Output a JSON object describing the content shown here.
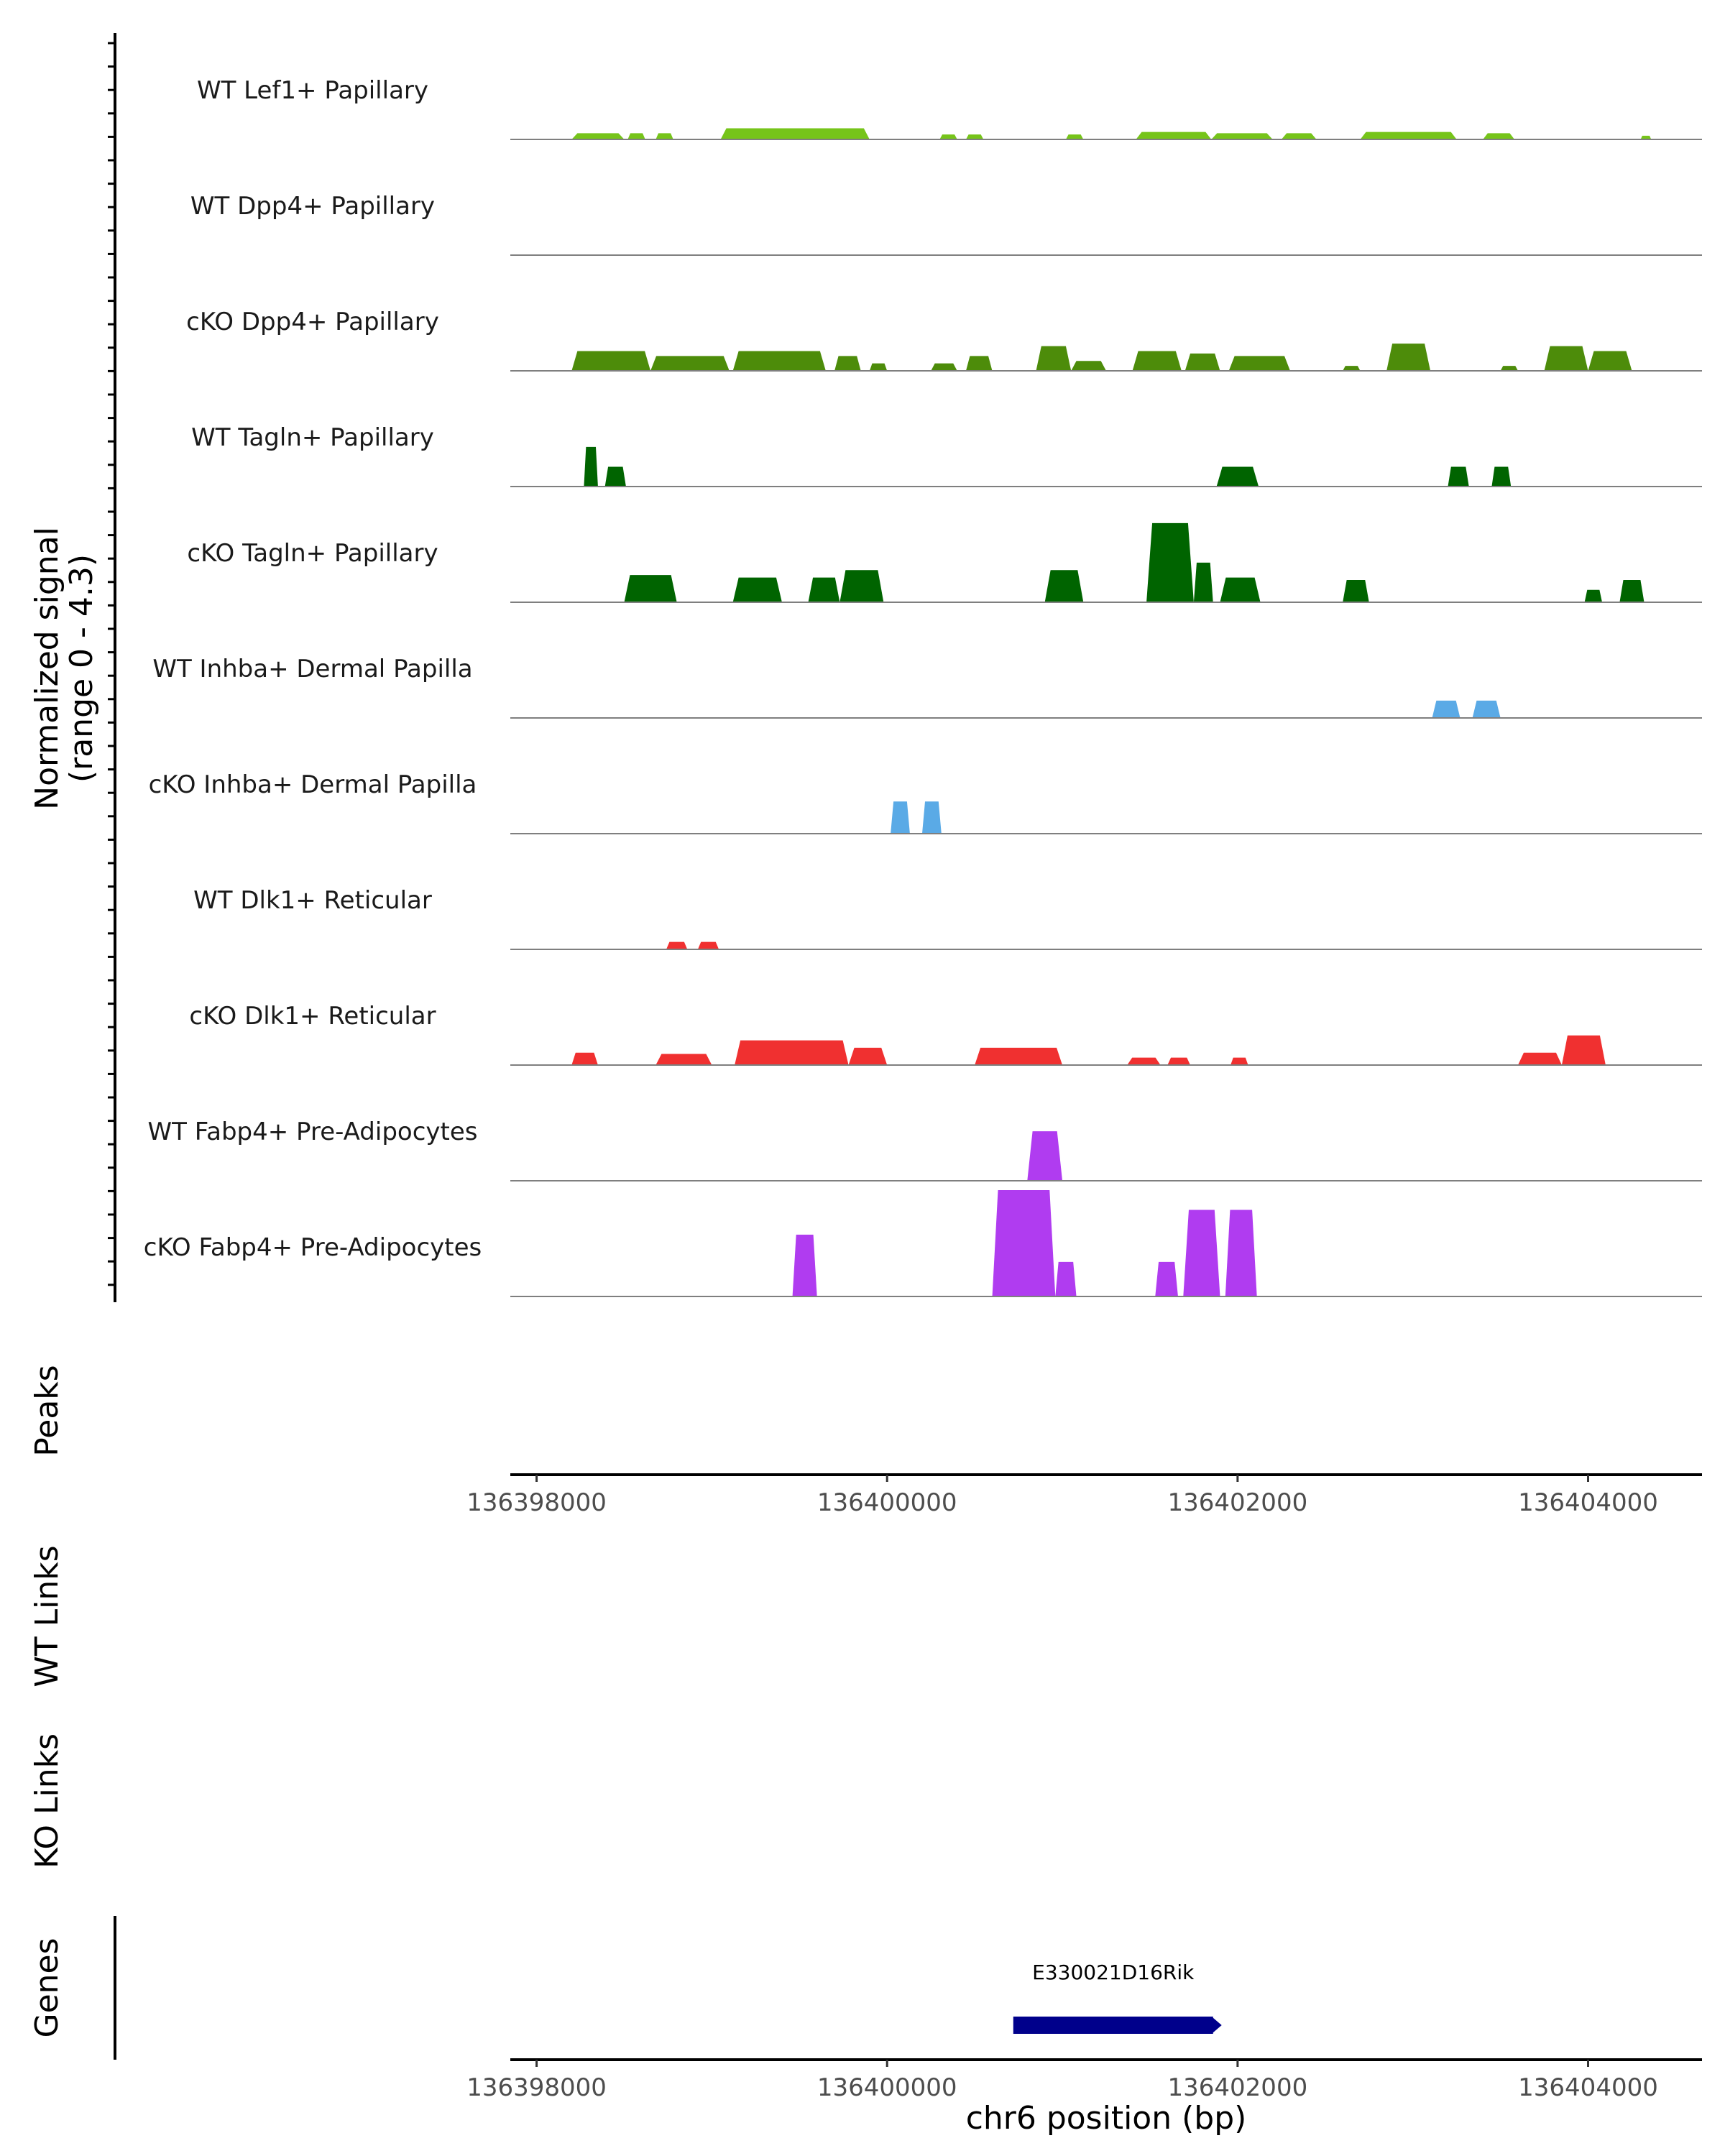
{
  "chart_data": {
    "type": "area",
    "title": "",
    "y_axis_label": {
      "line1": "Normalized signal",
      "line2": "(range 0 - 4.3)"
    },
    "ylim": [
      0,
      4.3
    ],
    "xlim": [
      136397850,
      136404650
    ],
    "x_ticks": [
      136398000,
      136400000,
      136402000,
      136404000
    ],
    "x_tick_labels": [
      "136398000",
      "136400000",
      "136402000",
      "136404000"
    ],
    "xlabel": "chr6 position (bp)",
    "panel_labels": {
      "peaks": "Peaks",
      "wt_links": "WT Links",
      "ko_links": "KO Links",
      "genes": "Genes"
    },
    "tracks": [
      {
        "name": "WT Lef1+ Papillary",
        "color": "#76c41a",
        "segments": [
          {
            "start": 136398200,
            "end": 136398500,
            "peak": 0.25
          },
          {
            "start": 136398520,
            "end": 136398620,
            "peak": 0.25
          },
          {
            "start": 136398680,
            "end": 136398780,
            "peak": 0.25
          },
          {
            "start": 136399050,
            "end": 136399900,
            "peak": 0.45
          },
          {
            "start": 136400300,
            "end": 136400400,
            "peak": 0.2
          },
          {
            "start": 136400450,
            "end": 136400550,
            "peak": 0.2
          },
          {
            "start": 136401020,
            "end": 136401120,
            "peak": 0.2
          },
          {
            "start": 136401420,
            "end": 136401850,
            "peak": 0.3
          },
          {
            "start": 136401850,
            "end": 136402200,
            "peak": 0.25
          },
          {
            "start": 136402250,
            "end": 136402450,
            "peak": 0.25
          },
          {
            "start": 136402700,
            "end": 136403250,
            "peak": 0.3
          },
          {
            "start": 136403400,
            "end": 136403580,
            "peak": 0.25
          },
          {
            "start": 136404300,
            "end": 136404360,
            "peak": 0.15
          }
        ]
      },
      {
        "name": "WT Dpp4+ Papillary",
        "color": "#4d8c0a",
        "segments": []
      },
      {
        "name": "cKO Dpp4+ Papillary",
        "color": "#4d8c0a",
        "segments": [
          {
            "start": 136398200,
            "end": 136398650,
            "peak": 0.8
          },
          {
            "start": 136398650,
            "end": 136399100,
            "peak": 0.6
          },
          {
            "start": 136399120,
            "end": 136399650,
            "peak": 0.8
          },
          {
            "start": 136399700,
            "end": 136399850,
            "peak": 0.6
          },
          {
            "start": 136399900,
            "end": 136400000,
            "peak": 0.3
          },
          {
            "start": 136400250,
            "end": 136400400,
            "peak": 0.3
          },
          {
            "start": 136400450,
            "end": 136400600,
            "peak": 0.6
          },
          {
            "start": 136400850,
            "end": 136401050,
            "peak": 1.0
          },
          {
            "start": 136401050,
            "end": 136401250,
            "peak": 0.4
          },
          {
            "start": 136401400,
            "end": 136401680,
            "peak": 0.8
          },
          {
            "start": 136401700,
            "end": 136401900,
            "peak": 0.7
          },
          {
            "start": 136401950,
            "end": 136402300,
            "peak": 0.6
          },
          {
            "start": 136402600,
            "end": 136402700,
            "peak": 0.2
          },
          {
            "start": 136402850,
            "end": 136403100,
            "peak": 1.1
          },
          {
            "start": 136403500,
            "end": 136403600,
            "peak": 0.2
          },
          {
            "start": 136403750,
            "end": 136404000,
            "peak": 1.0
          },
          {
            "start": 136404000,
            "end": 136404250,
            "peak": 0.8
          }
        ]
      },
      {
        "name": "WT Tagln+ Papillary",
        "color": "#006400",
        "segments": [
          {
            "start": 136398270,
            "end": 136398350,
            "peak": 1.6
          },
          {
            "start": 136398390,
            "end": 136398510,
            "peak": 0.8
          },
          {
            "start": 136401880,
            "end": 136402120,
            "peak": 0.8
          },
          {
            "start": 136403200,
            "end": 136403320,
            "peak": 0.8
          },
          {
            "start": 136403450,
            "end": 136403560,
            "peak": 0.8
          }
        ]
      },
      {
        "name": "cKO Tagln+ Papillary",
        "color": "#006400",
        "segments": [
          {
            "start": 136398500,
            "end": 136398800,
            "peak": 1.1
          },
          {
            "start": 136399120,
            "end": 136399400,
            "peak": 1.0
          },
          {
            "start": 136399550,
            "end": 136399730,
            "peak": 1.0
          },
          {
            "start": 136399730,
            "end": 136399980,
            "peak": 1.3
          },
          {
            "start": 136400900,
            "end": 136401120,
            "peak": 1.3
          },
          {
            "start": 136401480,
            "end": 136401750,
            "peak": 3.2
          },
          {
            "start": 136401750,
            "end": 136401860,
            "peak": 1.6
          },
          {
            "start": 136401900,
            "end": 136402130,
            "peak": 1.0
          },
          {
            "start": 136402600,
            "end": 136402750,
            "peak": 0.9
          },
          {
            "start": 136403980,
            "end": 136404080,
            "peak": 0.5
          },
          {
            "start": 136404180,
            "end": 136404320,
            "peak": 0.9
          }
        ]
      },
      {
        "name": "WT Inhba+ Dermal Papilla",
        "color": "#5aaae6",
        "segments": [
          {
            "start": 136403110,
            "end": 136403270,
            "peak": 0.7
          },
          {
            "start": 136403340,
            "end": 136403500,
            "peak": 0.7
          }
        ]
      },
      {
        "name": "cKO Inhba+ Dermal Papilla",
        "color": "#5aaae6",
        "segments": [
          {
            "start": 136400020,
            "end": 136400130,
            "peak": 1.3
          },
          {
            "start": 136400200,
            "end": 136400310,
            "peak": 1.3
          }
        ]
      },
      {
        "name": "WT Dlk1+ Reticular",
        "color": "#f03030",
        "segments": [
          {
            "start": 136398740,
            "end": 136398860,
            "peak": 0.3
          },
          {
            "start": 136398920,
            "end": 136399040,
            "peak": 0.3
          }
        ]
      },
      {
        "name": "cKO Dlk1+ Reticular",
        "color": "#f03030",
        "segments": [
          {
            "start": 136398200,
            "end": 136398350,
            "peak": 0.5
          },
          {
            "start": 136398680,
            "end": 136399000,
            "peak": 0.45
          },
          {
            "start": 136399130,
            "end": 136399780,
            "peak": 1.0
          },
          {
            "start": 136399780,
            "end": 136400000,
            "peak": 0.7
          },
          {
            "start": 136400500,
            "end": 136401000,
            "peak": 0.7
          },
          {
            "start": 136401370,
            "end": 136401560,
            "peak": 0.3
          },
          {
            "start": 136401600,
            "end": 136401730,
            "peak": 0.3
          },
          {
            "start": 136401960,
            "end": 136402060,
            "peak": 0.3
          },
          {
            "start": 136403600,
            "end": 136403850,
            "peak": 0.5
          },
          {
            "start": 136403850,
            "end": 136404100,
            "peak": 1.2
          }
        ]
      },
      {
        "name": "WT Fabp4+ Pre-Adipocytes",
        "color": "#b03cf0",
        "segments": [
          {
            "start": 136400800,
            "end": 136401000,
            "peak": 2.0
          }
        ]
      },
      {
        "name": "cKO Fabp4+ Pre-Adipocytes",
        "color": "#b03cf0",
        "segments": [
          {
            "start": 136399460,
            "end": 136399600,
            "peak": 2.5
          },
          {
            "start": 136400600,
            "end": 136400960,
            "peak": 4.3
          },
          {
            "start": 136400960,
            "end": 136401080,
            "peak": 1.4
          },
          {
            "start": 136401530,
            "end": 136401660,
            "peak": 1.4
          },
          {
            "start": 136401690,
            "end": 136401900,
            "peak": 3.5
          },
          {
            "start": 136401930,
            "end": 136402110,
            "peak": 3.5
          }
        ]
      }
    ],
    "genes": [
      {
        "name": "E330021D16Rik",
        "start": 136400720,
        "end": 136401860,
        "color": "#00008b"
      }
    ]
  }
}
